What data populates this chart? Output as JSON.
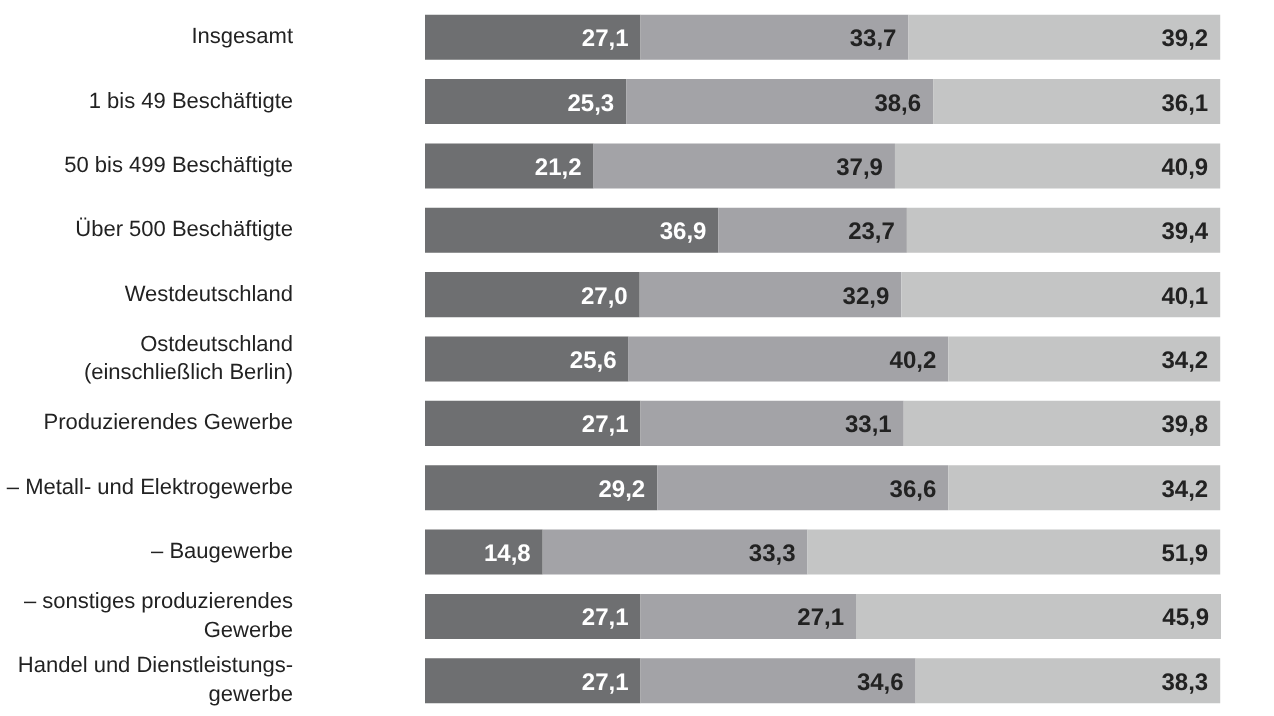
{
  "chart_data": {
    "type": "bar",
    "orientation": "horizontal",
    "stacked": true,
    "tick_labels": "y",
    "categories": [
      "Insgesamt",
      "1 bis 49 Beschäftigte",
      "50 bis 499 Beschäftigte",
      "Über 500 Beschäftigte",
      "Westdeutschland",
      "Ostdeutschland\n(einschließlich Berlin)",
      "Produzierendes Gewerbe",
      "– Metall- und Elektrogewerbe",
      "– Baugewerbe",
      "– sonstiges produzierendes\nGewerbe",
      "Handel und Dienstleistungs-\ngewerbe"
    ],
    "series": [
      {
        "color": "#6e6f71",
        "values": [
          27.1,
          25.3,
          21.2,
          36.9,
          27.0,
          25.6,
          27.1,
          29.2,
          14.8,
          27.1,
          27.1
        ],
        "value_labels": [
          "27,1",
          "25,3",
          "21,2",
          "36,9",
          "27,0",
          "25,6",
          "27,1",
          "29,2",
          "14,8",
          "27,1",
          "27,1"
        ]
      },
      {
        "color": "#a3a3a7",
        "values": [
          33.7,
          38.6,
          37.9,
          23.7,
          32.9,
          40.2,
          33.1,
          36.6,
          33.3,
          27.1,
          34.6
        ],
        "value_labels": [
          "33,7",
          "38,6",
          "37,9",
          "23,7",
          "32,9",
          "40,2",
          "33,1",
          "36,6",
          "33,3",
          "27,1",
          "34,6"
        ]
      },
      {
        "color": "#c4c5c5",
        "values": [
          39.2,
          36.1,
          40.9,
          39.4,
          40.1,
          34.2,
          39.8,
          34.2,
          51.9,
          45.9,
          38.3
        ],
        "value_labels": [
          "39,2",
          "36,1",
          "40,9",
          "39,4",
          "40,1",
          "34,2",
          "39,8",
          "34,2",
          "51,9",
          "45,9",
          "38,3"
        ]
      }
    ]
  }
}
